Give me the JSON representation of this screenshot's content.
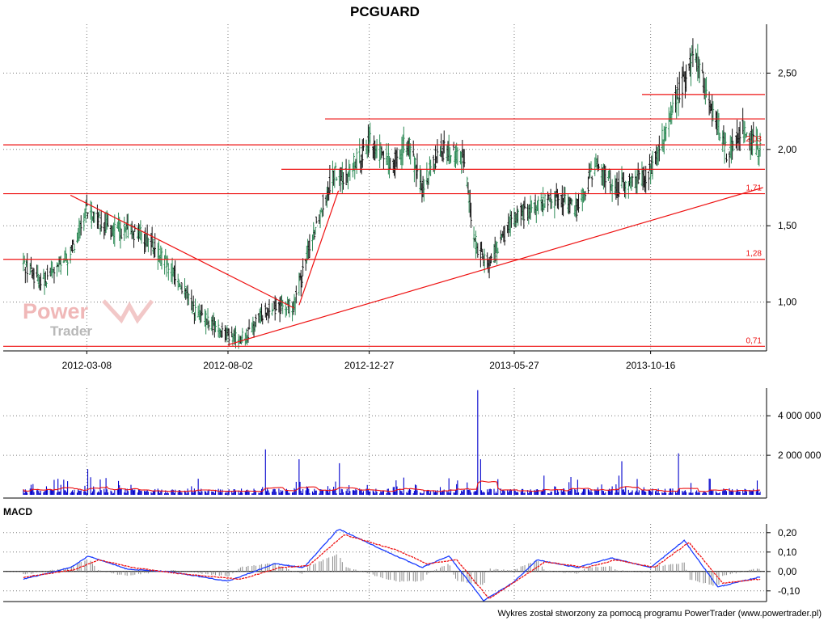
{
  "chart_data": [
    {
      "type": "candlestick",
      "title": "PCGUARD",
      "x_tick_labels": [
        "2012-03-08",
        "2012-08-02",
        "2012-12-27",
        "2013-05-27",
        "2013-10-16"
      ],
      "y_tick_labels": [
        "1,00",
        "1,50",
        "2,00",
        "2,50"
      ],
      "y_ticks": [
        1.0,
        1.5,
        2.0,
        2.5
      ],
      "ylim": [
        0.68,
        2.82
      ],
      "grid": true,
      "colors": {
        "up_candle": "#2e8b57",
        "down_candle": "#111111",
        "trend_lines": "#ee1111"
      },
      "key_points": [
        {
          "date": "2012-01-02",
          "close": 1.25
        },
        {
          "date": "2012-01-20",
          "close": 1.13
        },
        {
          "date": "2012-02-20",
          "close": 1.3
        },
        {
          "date": "2012-03-08",
          "close": 1.6
        },
        {
          "date": "2012-04-01",
          "close": 1.48
        },
        {
          "date": "2012-05-01",
          "close": 1.45
        },
        {
          "date": "2012-05-15",
          "close": 1.38
        },
        {
          "date": "2012-06-10",
          "close": 1.15
        },
        {
          "date": "2012-07-01",
          "close": 0.92
        },
        {
          "date": "2012-08-02",
          "close": 0.78
        },
        {
          "date": "2012-08-20",
          "close": 0.76
        },
        {
          "date": "2012-09-10",
          "close": 0.95
        },
        {
          "date": "2012-10-10",
          "close": 0.98
        },
        {
          "date": "2012-11-01",
          "close": 1.5
        },
        {
          "date": "2012-11-20",
          "close": 1.85
        },
        {
          "date": "2012-12-01",
          "close": 1.8
        },
        {
          "date": "2012-12-27",
          "close": 2.05
        },
        {
          "date": "2013-01-20",
          "close": 1.9
        },
        {
          "date": "2013-02-05",
          "close": 2.05
        },
        {
          "date": "2013-02-20",
          "close": 1.75
        },
        {
          "date": "2013-03-10",
          "close": 2.0
        },
        {
          "date": "2013-04-05",
          "close": 1.95
        },
        {
          "date": "2013-04-15",
          "close": 1.4
        },
        {
          "date": "2013-05-01",
          "close": 1.25
        },
        {
          "date": "2013-05-27",
          "close": 1.55
        },
        {
          "date": "2013-06-15",
          "close": 1.62
        },
        {
          "date": "2013-07-10",
          "close": 1.68
        },
        {
          "date": "2013-08-01",
          "close": 1.62
        },
        {
          "date": "2013-08-20",
          "close": 1.9
        },
        {
          "date": "2013-09-10",
          "close": 1.75
        },
        {
          "date": "2013-10-16",
          "close": 1.85
        },
        {
          "date": "2013-11-10",
          "close": 2.3
        },
        {
          "date": "2013-12-01",
          "close": 2.6
        },
        {
          "date": "2013-12-20",
          "close": 2.25
        },
        {
          "date": "2014-01-05",
          "close": 1.95
        },
        {
          "date": "2014-01-20",
          "close": 2.15
        },
        {
          "date": "2014-02-05",
          "close": 2.0
        }
      ],
      "horizontal_levels": [
        {
          "value": 2.03,
          "label": "2,03"
        },
        {
          "value": 1.71,
          "label": "1,71"
        },
        {
          "value": 1.28,
          "label": "1,28"
        },
        {
          "value": 0.71,
          "label": "0,71"
        },
        {
          "value": 2.2,
          "label": ""
        },
        {
          "value": 1.87,
          "label": ""
        },
        {
          "value": 2.36,
          "label": ""
        }
      ],
      "trend_lines": [
        {
          "from": {
            "date": "2012-02-20",
            "value": 1.7
          },
          "to": {
            "date": "2012-10-10",
            "value": 0.96
          }
        },
        {
          "from": {
            "date": "2012-08-02",
            "value": 0.72
          },
          "to": {
            "date": "2014-02-10",
            "value": 1.75
          }
        },
        {
          "from": {
            "date": "2012-10-15",
            "value": 0.98
          },
          "to": {
            "date": "2012-11-25",
            "value": 1.73
          }
        }
      ]
    },
    {
      "type": "bar",
      "y_tick_labels": [
        "2 000 000",
        "4 000 000"
      ],
      "y_ticks": [
        2000000,
        4000000
      ],
      "ylim": [
        0,
        5400000
      ],
      "colors": {
        "bars": "#0000cc",
        "moving_average": "#ee1111"
      },
      "notable_spikes": [
        {
          "date": "2012-03-10",
          "volume": 1300000
        },
        {
          "date": "2012-09-10",
          "volume": 2300000
        },
        {
          "date": "2012-10-15",
          "volume": 1800000
        },
        {
          "date": "2012-11-25",
          "volume": 1600000
        },
        {
          "date": "2013-04-20",
          "volume": 5300000
        },
        {
          "date": "2013-04-22",
          "volume": 1800000
        },
        {
          "date": "2013-09-15",
          "volume": 1700000
        },
        {
          "date": "2013-11-15",
          "volume": 2100000
        }
      ]
    },
    {
      "type": "line",
      "title": "MACD",
      "y_tick_labels": [
        "-0,10",
        "0,00",
        "0,10",
        "0,20"
      ],
      "y_ticks": [
        -0.1,
        0.0,
        0.1,
        0.2
      ],
      "ylim": [
        -0.155,
        0.245
      ],
      "series": [
        {
          "name": "",
          "color": "#1a3cff",
          "points": [
            {
              "date": "2012-01-02",
              "value": -0.04
            },
            {
              "date": "2012-02-20",
              "value": 0.02
            },
            {
              "date": "2012-03-10",
              "value": 0.08
            },
            {
              "date": "2012-04-20",
              "value": 0.01
            },
            {
              "date": "2012-06-01",
              "value": 0.0
            },
            {
              "date": "2012-08-02",
              "value": -0.05
            },
            {
              "date": "2012-09-20",
              "value": 0.04
            },
            {
              "date": "2012-10-20",
              "value": 0.02
            },
            {
              "date": "2012-11-25",
              "value": 0.22
            },
            {
              "date": "2013-01-15",
              "value": 0.1
            },
            {
              "date": "2013-02-20",
              "value": 0.02
            },
            {
              "date": "2013-03-20",
              "value": 0.08
            },
            {
              "date": "2013-04-25",
              "value": -0.15
            },
            {
              "date": "2013-05-25",
              "value": -0.06
            },
            {
              "date": "2013-06-20",
              "value": 0.06
            },
            {
              "date": "2013-08-01",
              "value": 0.02
            },
            {
              "date": "2013-09-05",
              "value": 0.07
            },
            {
              "date": "2013-10-16",
              "value": 0.02
            },
            {
              "date": "2013-11-20",
              "value": 0.16
            },
            {
              "date": "2013-12-25",
              "value": -0.08
            },
            {
              "date": "2014-02-05",
              "value": -0.03
            }
          ]
        },
        {
          "name": "",
          "color": "#ee1111",
          "points": [
            {
              "date": "2012-01-02",
              "value": -0.03
            },
            {
              "date": "2012-02-25",
              "value": 0.01
            },
            {
              "date": "2012-03-20",
              "value": 0.06
            },
            {
              "date": "2012-04-25",
              "value": 0.02
            },
            {
              "date": "2012-06-10",
              "value": -0.01
            },
            {
              "date": "2012-08-15",
              "value": -0.04
            },
            {
              "date": "2012-09-25",
              "value": 0.02
            },
            {
              "date": "2012-10-25",
              "value": 0.03
            },
            {
              "date": "2012-12-01",
              "value": 0.19
            },
            {
              "date": "2013-01-25",
              "value": 0.11
            },
            {
              "date": "2013-02-25",
              "value": 0.04
            },
            {
              "date": "2013-03-28",
              "value": 0.06
            },
            {
              "date": "2013-05-01",
              "value": -0.14
            },
            {
              "date": "2013-06-01",
              "value": -0.04
            },
            {
              "date": "2013-06-28",
              "value": 0.05
            },
            {
              "date": "2013-08-10",
              "value": 0.02
            },
            {
              "date": "2013-09-10",
              "value": 0.06
            },
            {
              "date": "2013-10-20",
              "value": 0.02
            },
            {
              "date": "2013-11-25",
              "value": 0.15
            },
            {
              "date": "2013-12-30",
              "value": -0.06
            },
            {
              "date": "2014-02-05",
              "value": -0.04
            }
          ]
        }
      ],
      "histogram_color": "#8a8a8a"
    }
  ],
  "watermark": {
    "line1": "Power",
    "line2": "Trader",
    "color": "#f0b8b8"
  },
  "footer": {
    "credit": "Wykres został stworzony za pomocą programu PowerTrader (www.powertrader.pl)"
  }
}
